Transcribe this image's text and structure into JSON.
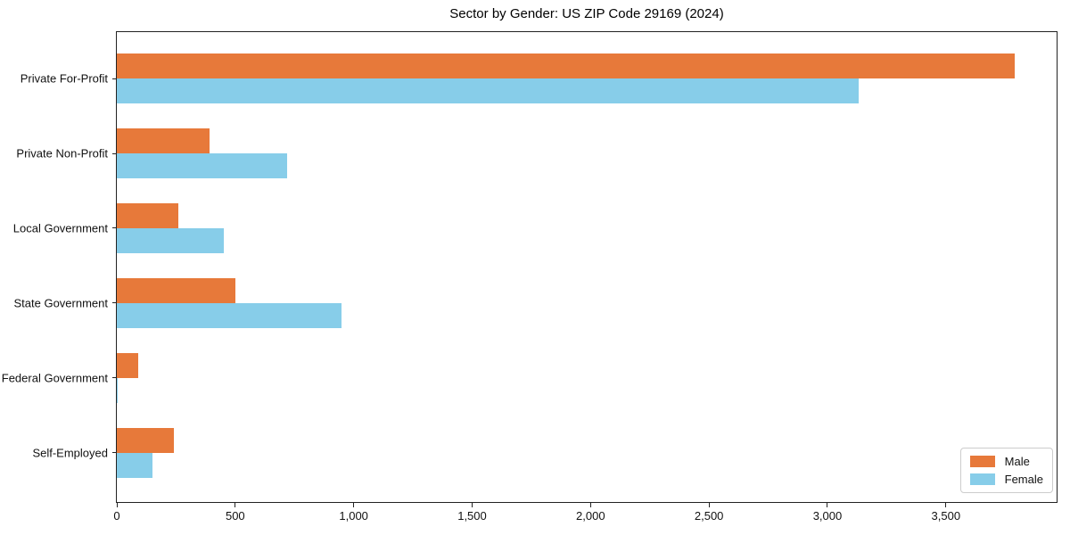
{
  "figure": {
    "background": "#ffffff"
  },
  "chart_data": {
    "type": "bar",
    "orientation": "horizontal",
    "title": "Sector by Gender: US ZIP Code 29169 (2024)",
    "categories": [
      "Private For-Profit",
      "Private Non-Profit",
      "Local Government",
      "State Government",
      "Federal Government",
      "Self-Employed"
    ],
    "series": [
      {
        "name": "Male",
        "color": "#e7793a",
        "values": [
          3790,
          390,
          260,
          500,
          90,
          240
        ]
      },
      {
        "name": "Female",
        "color": "#87cde9",
        "values": [
          3130,
          720,
          450,
          950,
          4,
          150
        ]
      }
    ],
    "xlabel": "",
    "ylabel": "",
    "xlim": [
      0,
      3975
    ],
    "xticks": [
      {
        "value": 0,
        "label": "0"
      },
      {
        "value": 500,
        "label": "500"
      },
      {
        "value": 1000,
        "label": "1,000"
      },
      {
        "value": 1500,
        "label": "1,500"
      },
      {
        "value": 2000,
        "label": "2,000"
      },
      {
        "value": 2500,
        "label": "2,500"
      },
      {
        "value": 3000,
        "label": "3,000"
      },
      {
        "value": 3500,
        "label": "3,500"
      }
    ],
    "grid": false,
    "legend_position": "lower right",
    "spine_color": "#222222"
  }
}
